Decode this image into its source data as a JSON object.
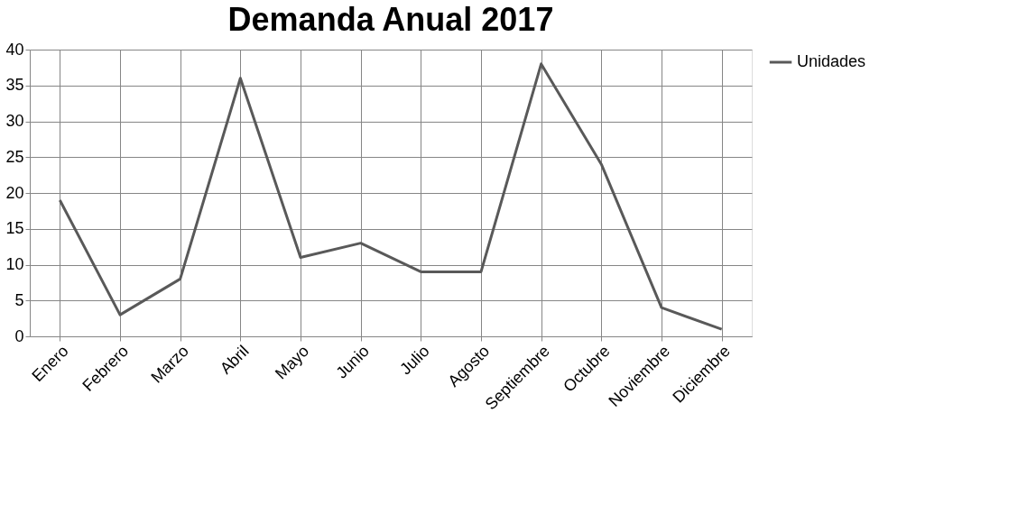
{
  "chart_data": {
    "type": "line",
    "title": "Demanda Anual 2017",
    "categories": [
      "Enero",
      "Febrero",
      "Marzo",
      "Abril",
      "Mayo",
      "Junio",
      "Julio",
      "Agosto",
      "Septiembre",
      "Octubre",
      "Noviembre",
      "Diciembre"
    ],
    "series": [
      {
        "name": "Unidades",
        "color": "#595959",
        "values": [
          19,
          3,
          8,
          36,
          11,
          13,
          9,
          9,
          38,
          24,
          4,
          1
        ]
      }
    ],
    "ylim": [
      0,
      40
    ],
    "yticks": [
      0,
      5,
      10,
      15,
      20,
      25,
      30,
      35,
      40
    ],
    "grid": true,
    "legend": "right",
    "marker": "none",
    "line_style": "solid"
  }
}
